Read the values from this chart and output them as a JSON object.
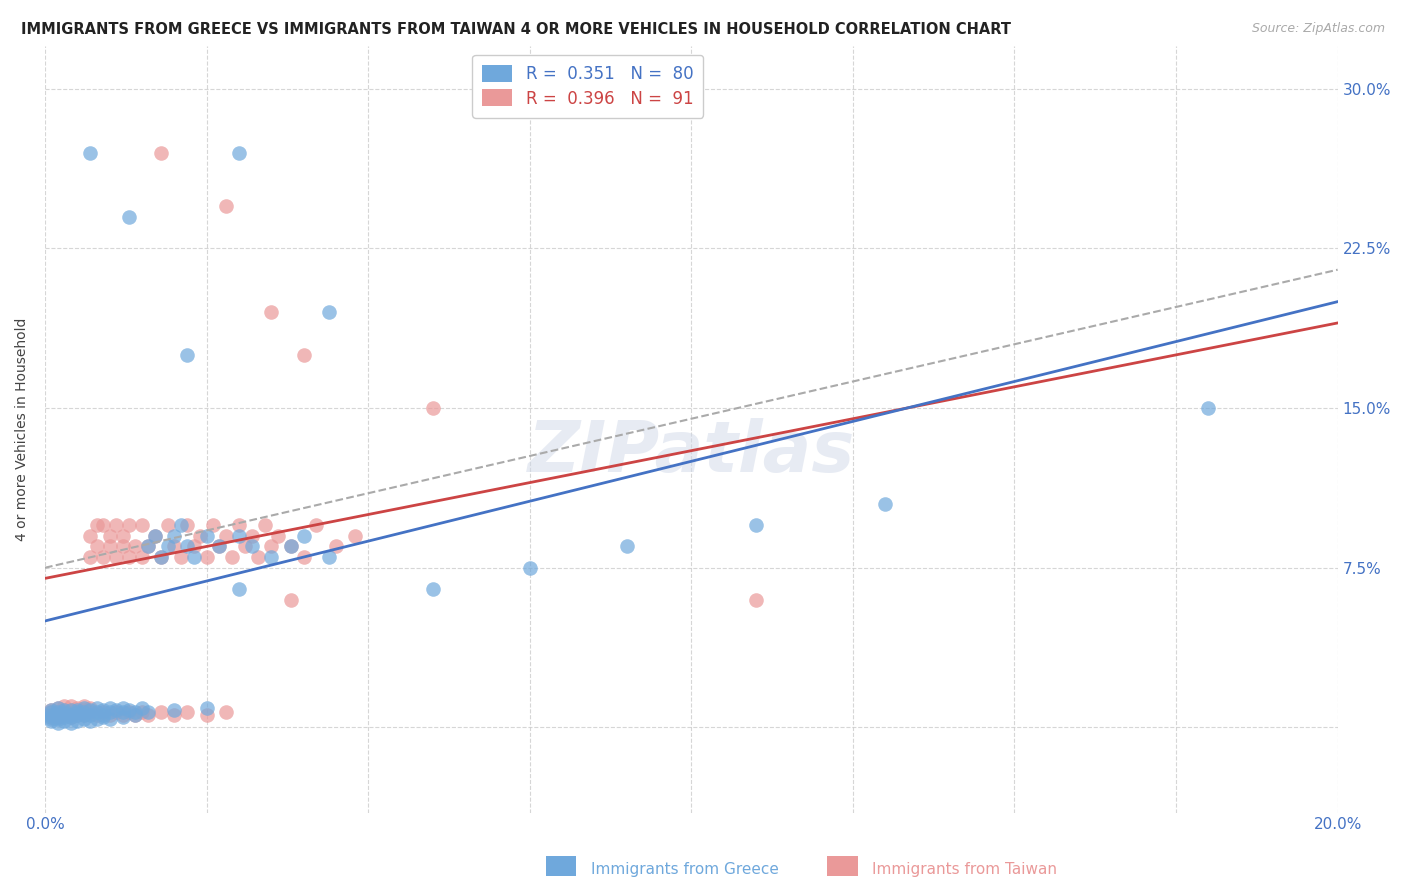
{
  "title": "IMMIGRANTS FROM GREECE VS IMMIGRANTS FROM TAIWAN 4 OR MORE VEHICLES IN HOUSEHOLD CORRELATION CHART",
  "source": "Source: ZipAtlas.com",
  "ylabel": "4 or more Vehicles in Household",
  "xlim": [
    0.0,
    0.2
  ],
  "ylim": [
    -0.04,
    0.32
  ],
  "greece_R": 0.351,
  "greece_N": 80,
  "taiwan_R": 0.396,
  "taiwan_N": 91,
  "greece_color": "#6fa8dc",
  "taiwan_color": "#ea9999",
  "greece_line_color": "#4472c4",
  "taiwan_line_color": "#cc4444",
  "title_fontsize": 10.5,
  "label_fontsize": 10,
  "tick_fontsize": 11,
  "source_fontsize": 9,
  "legend_fontsize": 12,
  "greece_x": [
    0.001,
    0.001,
    0.001,
    0.001,
    0.001,
    0.001,
    0.002,
    0.002,
    0.002,
    0.002,
    0.002,
    0.003,
    0.003,
    0.003,
    0.003,
    0.004,
    0.004,
    0.004,
    0.005,
    0.005,
    0.005,
    0.006,
    0.006,
    0.006,
    0.007,
    0.007,
    0.008,
    0.008,
    0.009,
    0.009,
    0.01,
    0.01,
    0.011,
    0.012,
    0.012,
    0.013,
    0.014,
    0.015,
    0.016,
    0.017,
    0.018,
    0.019,
    0.02,
    0.021,
    0.022,
    0.023,
    0.025,
    0.027,
    0.03,
    0.032,
    0.035,
    0.038,
    0.04,
    0.044,
    0.002,
    0.003,
    0.004,
    0.005,
    0.006,
    0.007,
    0.008,
    0.009,
    0.01,
    0.012,
    0.014,
    0.016,
    0.02,
    0.025,
    0.03,
    0.06,
    0.075,
    0.09,
    0.11,
    0.13,
    0.013,
    0.007,
    0.022,
    0.044,
    0.18,
    0.03
  ],
  "greece_y": [
    0.005,
    0.006,
    0.004,
    0.003,
    0.007,
    0.008,
    0.005,
    0.006,
    0.004,
    0.007,
    0.009,
    0.006,
    0.008,
    0.005,
    0.007,
    0.006,
    0.008,
    0.005,
    0.006,
    0.007,
    0.008,
    0.006,
    0.009,
    0.007,
    0.006,
    0.008,
    0.007,
    0.009,
    0.006,
    0.008,
    0.007,
    0.009,
    0.008,
    0.007,
    0.009,
    0.008,
    0.007,
    0.009,
    0.085,
    0.09,
    0.08,
    0.085,
    0.09,
    0.095,
    0.085,
    0.08,
    0.09,
    0.085,
    0.09,
    0.085,
    0.08,
    0.085,
    0.09,
    0.08,
    0.002,
    0.003,
    0.002,
    0.003,
    0.004,
    0.003,
    0.004,
    0.005,
    0.004,
    0.005,
    0.006,
    0.007,
    0.008,
    0.009,
    0.065,
    0.065,
    0.075,
    0.085,
    0.095,
    0.105,
    0.24,
    0.27,
    0.175,
    0.195,
    0.15,
    0.27
  ],
  "taiwan_x": [
    0.001,
    0.001,
    0.001,
    0.001,
    0.002,
    0.002,
    0.002,
    0.003,
    0.003,
    0.003,
    0.004,
    0.004,
    0.004,
    0.005,
    0.005,
    0.005,
    0.006,
    0.006,
    0.006,
    0.007,
    0.007,
    0.007,
    0.008,
    0.008,
    0.009,
    0.009,
    0.01,
    0.01,
    0.011,
    0.011,
    0.012,
    0.012,
    0.013,
    0.013,
    0.014,
    0.015,
    0.015,
    0.016,
    0.017,
    0.018,
    0.019,
    0.02,
    0.021,
    0.022,
    0.023,
    0.024,
    0.025,
    0.026,
    0.027,
    0.028,
    0.029,
    0.03,
    0.031,
    0.032,
    0.033,
    0.034,
    0.035,
    0.036,
    0.038,
    0.04,
    0.042,
    0.045,
    0.048,
    0.001,
    0.002,
    0.003,
    0.004,
    0.005,
    0.006,
    0.007,
    0.008,
    0.009,
    0.01,
    0.011,
    0.012,
    0.013,
    0.014,
    0.015,
    0.016,
    0.018,
    0.02,
    0.022,
    0.025,
    0.028,
    0.018,
    0.028,
    0.035,
    0.04,
    0.06,
    0.11,
    0.038
  ],
  "taiwan_y": [
    0.005,
    0.006,
    0.007,
    0.008,
    0.005,
    0.007,
    0.009,
    0.006,
    0.008,
    0.01,
    0.006,
    0.008,
    0.01,
    0.007,
    0.009,
    0.006,
    0.008,
    0.01,
    0.007,
    0.009,
    0.08,
    0.09,
    0.085,
    0.095,
    0.08,
    0.095,
    0.085,
    0.09,
    0.08,
    0.095,
    0.085,
    0.09,
    0.08,
    0.095,
    0.085,
    0.08,
    0.095,
    0.085,
    0.09,
    0.08,
    0.095,
    0.085,
    0.08,
    0.095,
    0.085,
    0.09,
    0.08,
    0.095,
    0.085,
    0.09,
    0.08,
    0.095,
    0.085,
    0.09,
    0.08,
    0.095,
    0.085,
    0.09,
    0.085,
    0.08,
    0.095,
    0.085,
    0.09,
    0.006,
    0.005,
    0.006,
    0.005,
    0.007,
    0.006,
    0.007,
    0.006,
    0.007,
    0.006,
    0.007,
    0.006,
    0.007,
    0.006,
    0.007,
    0.006,
    0.007,
    0.006,
    0.007,
    0.006,
    0.007,
    0.27,
    0.245,
    0.195,
    0.175,
    0.15,
    0.06,
    0.06
  ]
}
